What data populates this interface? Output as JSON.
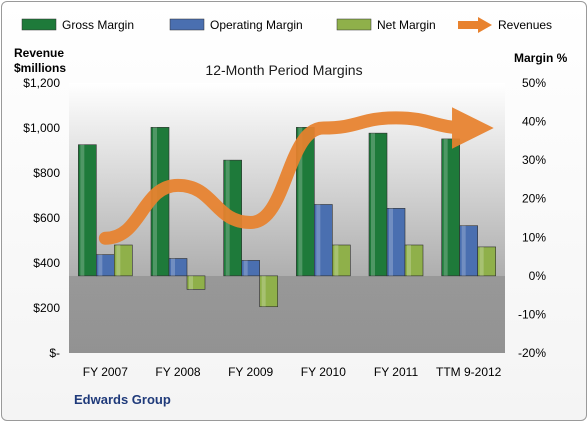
{
  "chart_data": {
    "type": "bar",
    "title": "12-Month Period Margins",
    "categories": [
      "FY 2007",
      "FY 2008",
      "FY 2009",
      "FY 2010",
      "FY 2011",
      "TTM 9-2012"
    ],
    "series": [
      {
        "name": "Gross Margin",
        "type": "bar",
        "axis": "right",
        "color": "#1e7a3a",
        "values": [
          34.0,
          38.5,
          30.0,
          38.5,
          37.0,
          35.5
        ]
      },
      {
        "name": "Operating Margin",
        "type": "bar",
        "axis": "right",
        "color": "#4a6fb0",
        "values": [
          5.5,
          4.5,
          4.0,
          18.5,
          17.5,
          13.0
        ]
      },
      {
        "name": "Net Margin",
        "type": "bar",
        "axis": "right",
        "color": "#8fb04a",
        "values": [
          8.0,
          -3.5,
          -8.0,
          8.0,
          8.0,
          7.5
        ]
      },
      {
        "name": "Revenues",
        "type": "line",
        "axis": "left",
        "color": "#e8822e",
        "values": [
          510,
          745,
          580,
          1000,
          1045,
          1000
        ]
      }
    ],
    "left_axis": {
      "label_line1": "Revenue",
      "label_line2": "$millions",
      "ylim": [
        0,
        1200
      ],
      "ticks": [
        0,
        200,
        400,
        600,
        800,
        1000,
        1200
      ],
      "tick_labels": [
        "$-",
        "$200",
        "$400",
        "$600",
        "$800",
        "$1,000",
        "$1,200"
      ]
    },
    "right_axis": {
      "label": "Margin %",
      "ylim": [
        -20,
        50
      ],
      "ticks": [
        -20,
        -10,
        0,
        10,
        20,
        30,
        40,
        50
      ],
      "tick_labels": [
        "-20%",
        "-10%",
        "0%",
        "10%",
        "20%",
        "30%",
        "40%",
        "50%"
      ]
    },
    "legend_position": "top",
    "grid": false
  },
  "footer_text": "Edwards Group"
}
